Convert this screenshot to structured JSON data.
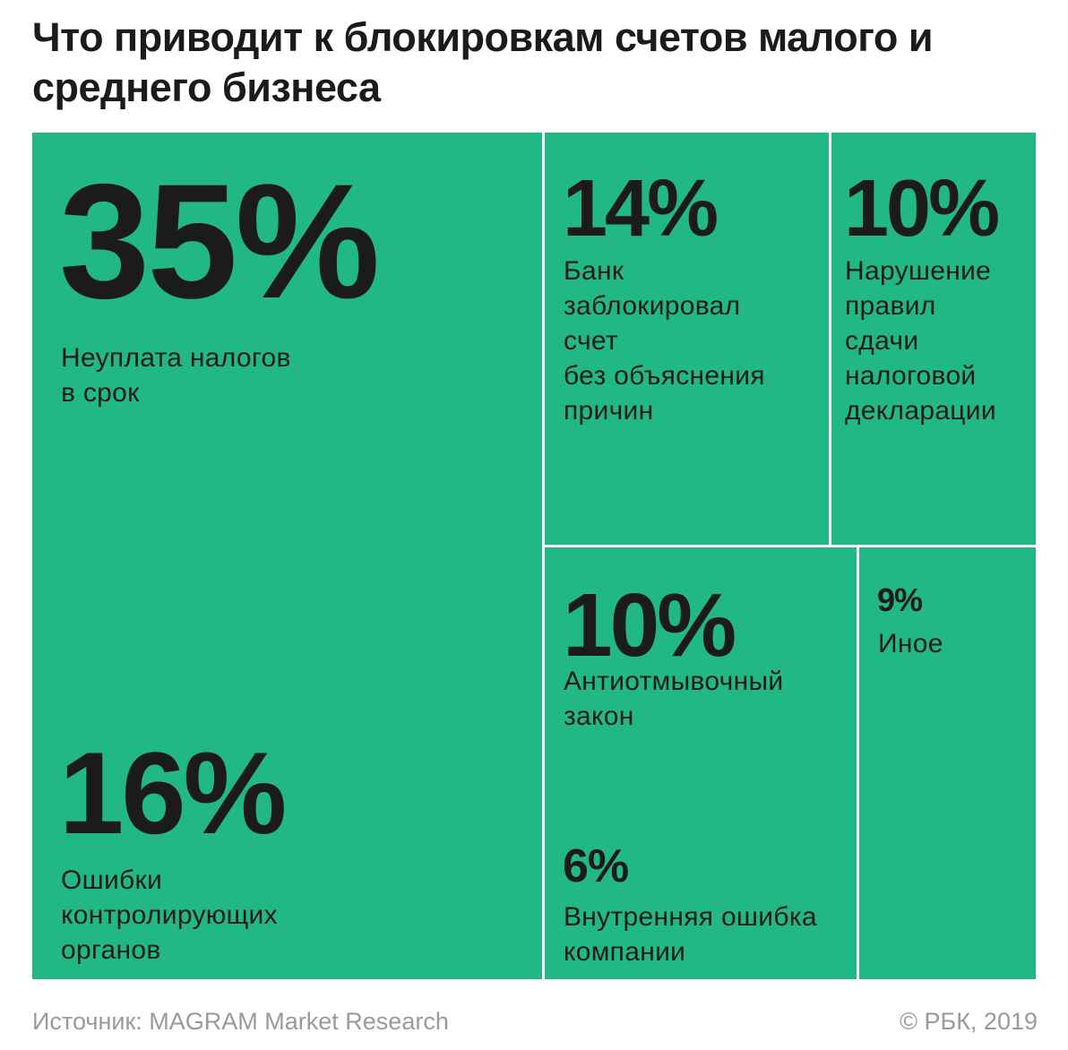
{
  "title": "Что приводит к блокировкам счетов малого и среднего бизнеса",
  "chart_data": {
    "type": "treemap",
    "title": "Что приводит к блокировкам счетов малого и среднего бизнеса",
    "unit": "%",
    "items": [
      {
        "value": 35,
        "value_label": "35%",
        "label": "Неуплата налогов\nв срок"
      },
      {
        "value": 16,
        "value_label": "16%",
        "label": "Ошибки\nконтролирующих\nорганов"
      },
      {
        "value": 14,
        "value_label": "14%",
        "label": "Банк\nзаблокировал\nсчет\nбез объяснения\nпричин"
      },
      {
        "value": 10,
        "value_label": "10%",
        "label": "Нарушение\nправил\nсдачи\nналоговой\nдекларации"
      },
      {
        "value": 10,
        "value_label": "10%",
        "label": "Антиотмывочный\nзакон"
      },
      {
        "value": 6,
        "value_label": "6%",
        "label": "Внутренняя ошибка\nкомпании"
      },
      {
        "value": 9,
        "value_label": "9%",
        "label": "Иное"
      }
    ],
    "colors": {
      "tile": "#22b787",
      "text": "#1b1b1b",
      "divider": "#ffffff"
    }
  },
  "footer": {
    "source": "Источник: MAGRAM Market Research",
    "copyright": "© РБК, 2019"
  }
}
